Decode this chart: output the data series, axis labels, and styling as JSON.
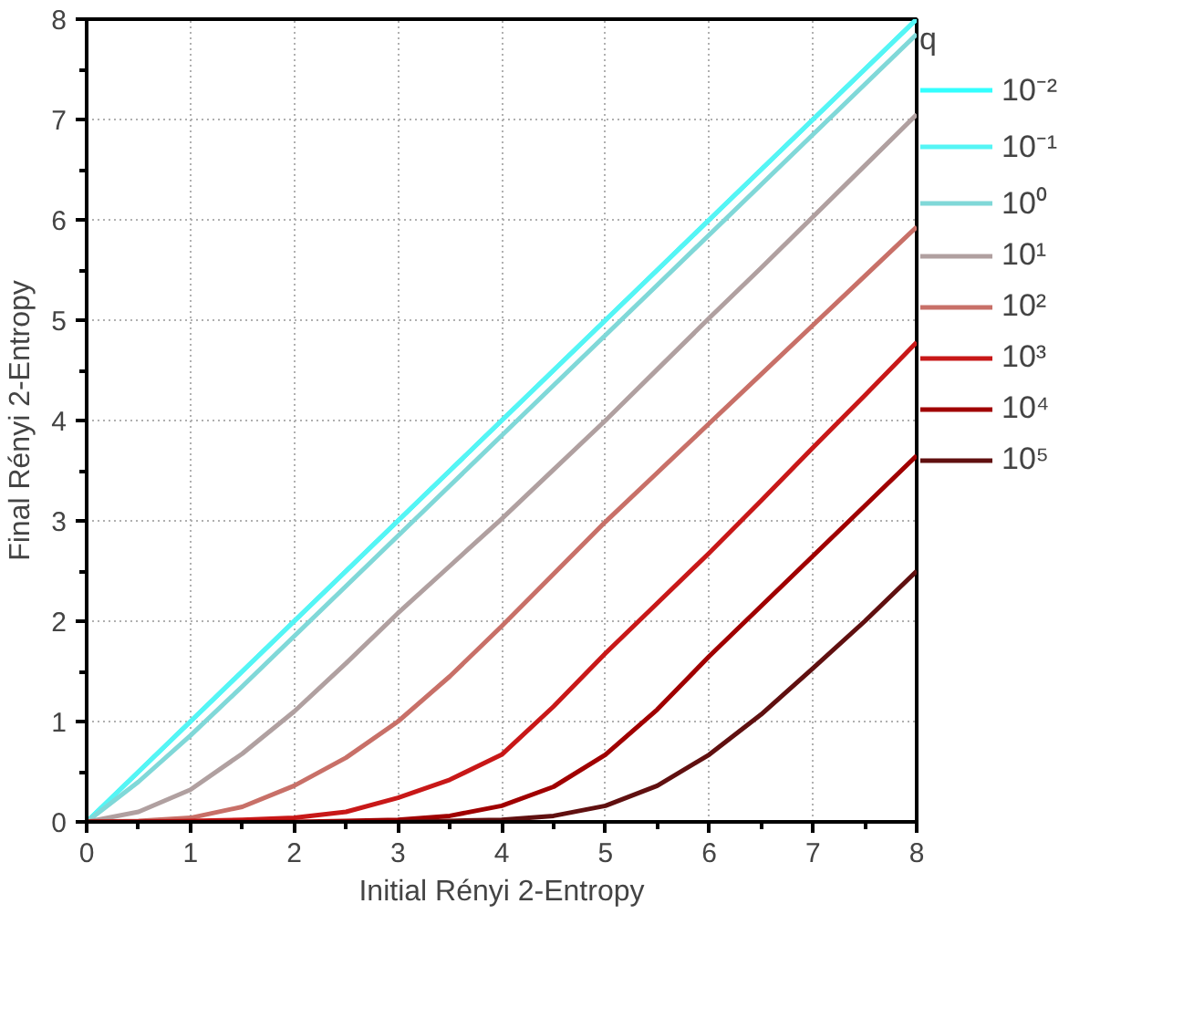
{
  "chart_data": {
    "type": "line",
    "xlabel": "Initial Rényi 2-Entropy",
    "ylabel": "Final Rényi 2-Entropy",
    "legend_title": "q",
    "x": [
      0,
      0.5,
      1,
      1.5,
      2,
      2.5,
      3,
      3.5,
      4,
      4.5,
      5,
      5.5,
      6,
      6.5,
      7,
      7.5,
      8
    ],
    "series": [
      {
        "name": "10⁻²",
        "color": "#33ffff",
        "values": [
          0,
          0.5,
          1,
          1.5,
          2,
          2.5,
          3,
          3.5,
          4,
          4.5,
          5,
          5.5,
          6,
          6.5,
          7,
          7.5,
          8
        ]
      },
      {
        "name": "10⁻¹",
        "color": "#55f5f5",
        "values": [
          0,
          0.5,
          1,
          1.5,
          2,
          2.5,
          3,
          3.5,
          4,
          4.5,
          5,
          5.5,
          6,
          6.5,
          7,
          7.5,
          8
        ]
      },
      {
        "name": "10⁰",
        "color": "#80d8d8",
        "values": [
          0,
          0.4,
          0.86,
          1.35,
          1.85,
          2.35,
          2.85,
          3.35,
          3.85,
          4.35,
          4.85,
          5.35,
          5.85,
          6.35,
          6.85,
          7.35,
          7.85
        ]
      },
      {
        "name": "10¹",
        "color": "#b0a0a0",
        "values": [
          0,
          0.1,
          0.32,
          0.68,
          1.1,
          1.58,
          2.08,
          2.55,
          3.02,
          3.51,
          4.0,
          4.51,
          5.02,
          5.52,
          6.03,
          6.54,
          7.05
        ]
      },
      {
        "name": "10²",
        "color": "#c87068",
        "values": [
          0,
          0.01,
          0.04,
          0.15,
          0.36,
          0.64,
          1.0,
          1.45,
          1.95,
          2.47,
          2.99,
          3.48,
          3.97,
          4.46,
          4.95,
          5.44,
          5.93
        ]
      },
      {
        "name": "10³",
        "color": "#c81818",
        "values": [
          0,
          0,
          0.01,
          0.02,
          0.04,
          0.1,
          0.24,
          0.42,
          0.67,
          1.15,
          1.68,
          2.18,
          2.68,
          3.2,
          3.73,
          4.25,
          4.78
        ]
      },
      {
        "name": "10⁴",
        "color": "#a00000",
        "values": [
          0,
          0,
          0,
          0,
          0,
          0.01,
          0.02,
          0.06,
          0.16,
          0.35,
          0.67,
          1.12,
          1.65,
          2.15,
          2.65,
          3.15,
          3.65
        ]
      },
      {
        "name": "10⁵",
        "color": "#601010",
        "values": [
          null,
          null,
          null,
          null,
          null,
          null,
          0,
          0.01,
          0.02,
          0.06,
          0.16,
          0.36,
          0.67,
          1.07,
          1.53,
          2.0,
          2.5
        ]
      }
    ],
    "xlim": [
      0,
      8
    ],
    "ylim": [
      0,
      8
    ],
    "xticks": [
      0,
      1,
      2,
      3,
      4,
      5,
      6,
      7,
      8
    ],
    "yticks": [
      0,
      1,
      2,
      3,
      4,
      5,
      6,
      7,
      8
    ],
    "grid": true,
    "legend": "right",
    "line_style": "solid",
    "marker": "none"
  }
}
